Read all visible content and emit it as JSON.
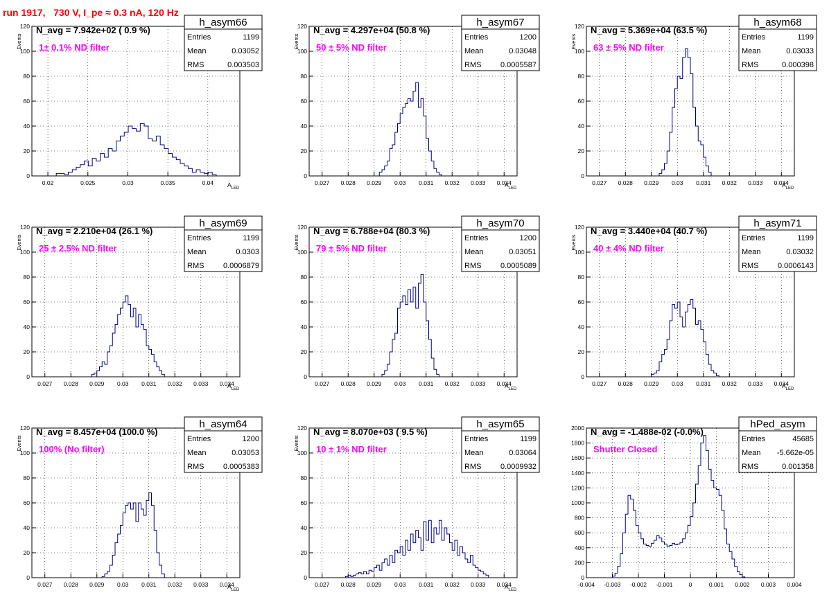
{
  "page": {
    "title": "run 1917,   730 V, I_pe ≈ 0.3 nA, 120 Hz",
    "colors": {
      "title": "#ff0000",
      "annotation": "#ff00ff",
      "histogram": "#000080",
      "grid": "#000000"
    }
  },
  "chart_data": [
    {
      "type": "histogram",
      "name": "h_asym66",
      "ylabel": "Events",
      "xlabel": "A_LED",
      "xlim": [
        0.018,
        0.044
      ],
      "ylim": [
        0,
        120
      ],
      "xticks": [
        0.02,
        0.025,
        0.03,
        0.035,
        0.04
      ],
      "xtick_labels": [
        "0.02",
        "0.025",
        "0.03",
        "0.035",
        "0.04"
      ],
      "yticks": [
        0,
        20,
        40,
        60,
        80,
        100,
        120
      ],
      "ytick_labels": [
        "0",
        "20",
        "40",
        "60",
        "80",
        "100",
        "120"
      ],
      "navg": "N_avg = 7.942e+02 ( 0.9 %)",
      "filter": "1± 0.1% ND filter",
      "stats": [
        [
          "Entries",
          "1199"
        ],
        [
          "Mean",
          "0.03052"
        ],
        [
          "RMS",
          "0.003503"
        ]
      ],
      "x": [
        0.0213,
        0.0218,
        0.0223,
        0.0228,
        0.0233,
        0.0238,
        0.0243,
        0.0248,
        0.0253,
        0.0258,
        0.0263,
        0.0268,
        0.0273,
        0.0278,
        0.0283,
        0.0288,
        0.0293,
        0.0298,
        0.0303,
        0.0308,
        0.0313,
        0.0318,
        0.0323,
        0.0328,
        0.0333,
        0.0338,
        0.0343,
        0.0348,
        0.0353,
        0.0358,
        0.0363,
        0.0368,
        0.0373,
        0.0378,
        0.0383,
        0.0388,
        0.0393,
        0.0398,
        0.0403,
        0.0408
      ],
      "values": [
        2,
        2,
        1,
        3,
        5,
        7,
        9,
        12,
        8,
        14,
        12,
        18,
        15,
        22,
        20,
        28,
        32,
        35,
        40,
        38,
        36,
        42,
        40,
        30,
        28,
        32,
        25,
        22,
        18,
        15,
        13,
        10,
        8,
        6,
        3,
        5,
        3,
        2,
        3,
        1
      ]
    },
    {
      "type": "histogram",
      "name": "h_asym67",
      "ylabel": "Events",
      "xlabel": "A_LED",
      "xlim": [
        0.0265,
        0.0345
      ],
      "ylim": [
        0,
        120
      ],
      "xticks": [
        0.027,
        0.028,
        0.029,
        0.03,
        0.031,
        0.032,
        0.033,
        0.034
      ],
      "xtick_labels": [
        "0.027",
        "0.028",
        "0.029",
        "0.03",
        "0.031",
        "0.032",
        "0.033",
        "0.034"
      ],
      "yticks": [
        0,
        20,
        40,
        60,
        80,
        100,
        120
      ],
      "ytick_labels": [
        "0",
        "20",
        "40",
        "60",
        "80",
        "100",
        "120"
      ],
      "navg": "N_avg = 4.297e+04 (50.8 %)",
      "filter": "50 ± 5% ND filter",
      "stats": [
        [
          "Entries",
          "1200"
        ],
        [
          "Mean",
          "0.03048"
        ],
        [
          "RMS",
          "0.0005587"
        ]
      ],
      "x": [
        0.02925,
        0.02935,
        0.02945,
        0.02955,
        0.02965,
        0.02975,
        0.02985,
        0.02995,
        0.03005,
        0.03015,
        0.03025,
        0.03035,
        0.03045,
        0.03055,
        0.03065,
        0.03075,
        0.03085,
        0.03095,
        0.03105,
        0.03115,
        0.03125,
        0.03135,
        0.03145,
        0.03155
      ],
      "values": [
        3,
        5,
        8,
        12,
        22,
        25,
        35,
        42,
        50,
        55,
        58,
        62,
        60,
        68,
        75,
        55,
        62,
        48,
        30,
        20,
        12,
        6,
        3,
        1
      ]
    },
    {
      "type": "histogram",
      "name": "h_asym68",
      "ylabel": "Events",
      "xlabel": "A_LED",
      "xlim": [
        0.0265,
        0.0345
      ],
      "ylim": [
        0,
        120
      ],
      "xticks": [
        0.027,
        0.028,
        0.029,
        0.03,
        0.031,
        0.032,
        0.033,
        0.034
      ],
      "xtick_labels": [
        "0.027",
        "0.028",
        "0.029",
        "0.03",
        "0.031",
        "0.032",
        "0.033",
        "0.034"
      ],
      "yticks": [
        0,
        20,
        40,
        60,
        80,
        100,
        120
      ],
      "ytick_labels": [
        "0",
        "20",
        "40",
        "60",
        "80",
        "100",
        "120"
      ],
      "navg": "N_avg = 5.369e+04 (63.5 %)",
      "filter": "63 ± 5% ND filter",
      "stats": [
        [
          "Entries",
          "1199"
        ],
        [
          "Mean",
          "0.03033"
        ],
        [
          "RMS",
          "0.000398"
        ]
      ],
      "x": [
        0.02935,
        0.02945,
        0.02955,
        0.02965,
        0.02975,
        0.02985,
        0.02995,
        0.03005,
        0.03015,
        0.03025,
        0.03035,
        0.03045,
        0.03055,
        0.03065,
        0.03075,
        0.03085,
        0.03095,
        0.03105,
        0.03115,
        0.03125
      ],
      "values": [
        2,
        5,
        10,
        20,
        35,
        55,
        70,
        80,
        78,
        95,
        102,
        95,
        82,
        55,
        40,
        28,
        25,
        15,
        8,
        3
      ]
    },
    {
      "type": "histogram",
      "name": "h_asym69",
      "ylabel": "Events",
      "xlabel": "A_LED",
      "xlim": [
        0.0265,
        0.0345
      ],
      "ylim": [
        0,
        120
      ],
      "xticks": [
        0.027,
        0.028,
        0.029,
        0.03,
        0.031,
        0.032,
        0.033,
        0.034
      ],
      "xtick_labels": [
        "0.027",
        "0.028",
        "0.029",
        "0.03",
        "0.031",
        "0.032",
        "0.033",
        "0.034"
      ],
      "yticks": [
        0,
        20,
        40,
        60,
        80,
        100,
        120
      ],
      "ytick_labels": [
        "0",
        "20",
        "40",
        "60",
        "80",
        "100",
        "120"
      ],
      "navg": "N_avg = 2.210e+04 (26.1 %)",
      "filter": "25 ± 2.5% ND filter",
      "stats": [
        [
          "Entries",
          "1199"
        ],
        [
          "Mean",
          "0.0303"
        ],
        [
          "RMS",
          "0.0006879"
        ]
      ],
      "x": [
        0.02885,
        0.02895,
        0.02905,
        0.02915,
        0.02925,
        0.02935,
        0.02945,
        0.02955,
        0.02965,
        0.02975,
        0.02985,
        0.02995,
        0.03005,
        0.03015,
        0.03025,
        0.03035,
        0.03045,
        0.03055,
        0.03065,
        0.03075,
        0.03085,
        0.03095,
        0.03105,
        0.03115,
        0.03125,
        0.03135,
        0.03145,
        0.03155
      ],
      "values": [
        2,
        3,
        5,
        8,
        12,
        10,
        20,
        25,
        35,
        42,
        50,
        55,
        60,
        65,
        58,
        48,
        55,
        40,
        50,
        42,
        38,
        25,
        22,
        18,
        12,
        8,
        5,
        2
      ]
    },
    {
      "type": "histogram",
      "name": "h_asym70",
      "ylabel": "Events",
      "xlabel": "A_LED",
      "xlim": [
        0.0265,
        0.0345
      ],
      "ylim": [
        0,
        120
      ],
      "xticks": [
        0.027,
        0.028,
        0.029,
        0.03,
        0.031,
        0.032,
        0.033,
        0.034
      ],
      "xtick_labels": [
        "0.027",
        "0.028",
        "0.029",
        "0.03",
        "0.031",
        "0.032",
        "0.033",
        "0.034"
      ],
      "yticks": [
        0,
        20,
        40,
        60,
        80,
        100,
        120
      ],
      "ytick_labels": [
        "0",
        "20",
        "40",
        "60",
        "80",
        "100",
        "120"
      ],
      "navg": "N_avg = 6.788e+04 (80.3 %)",
      "filter": "79 ± 5% ND filter",
      "stats": [
        [
          "Entries",
          "1200"
        ],
        [
          "Mean",
          "0.03051"
        ],
        [
          "RMS",
          "0.0005089"
        ]
      ],
      "x": [
        0.02935,
        0.02945,
        0.02955,
        0.02965,
        0.02975,
        0.02985,
        0.02995,
        0.03005,
        0.03015,
        0.03025,
        0.03035,
        0.03045,
        0.03055,
        0.03065,
        0.03075,
        0.03085,
        0.03095,
        0.03105,
        0.03115,
        0.03125,
        0.03135,
        0.03145
      ],
      "values": [
        2,
        5,
        10,
        20,
        30,
        35,
        55,
        60,
        65,
        58,
        70,
        60,
        72,
        55,
        75,
        82,
        60,
        45,
        30,
        15,
        6,
        2
      ]
    },
    {
      "type": "histogram",
      "name": "h_asym71",
      "ylabel": "Events",
      "xlabel": "A_LED",
      "xlim": [
        0.0265,
        0.0345
      ],
      "ylim": [
        0,
        120
      ],
      "xticks": [
        0.027,
        0.028,
        0.029,
        0.03,
        0.031,
        0.032,
        0.033,
        0.034
      ],
      "xtick_labels": [
        "0.027",
        "0.028",
        "0.029",
        "0.03",
        "0.031",
        "0.032",
        "0.033",
        "0.034"
      ],
      "yticks": [
        0,
        20,
        40,
        60,
        80,
        100,
        120
      ],
      "ytick_labels": [
        "0",
        "20",
        "40",
        "60",
        "80",
        "100",
        "120"
      ],
      "navg": "N_avg = 3.440e+04 (40.7 %)",
      "filter": "40 ± 4% ND filter",
      "stats": [
        [
          "Entries",
          "1199"
        ],
        [
          "Mean",
          "0.03032"
        ],
        [
          "RMS",
          "0.0006143"
        ]
      ],
      "x": [
        0.02905,
        0.02915,
        0.02925,
        0.02935,
        0.02945,
        0.02955,
        0.02965,
        0.02975,
        0.02985,
        0.02995,
        0.03005,
        0.03015,
        0.03025,
        0.03035,
        0.03045,
        0.03055,
        0.03065,
        0.03075,
        0.03085,
        0.03095,
        0.03105,
        0.03115,
        0.03125,
        0.03135,
        0.03145,
        0.03155
      ],
      "values": [
        2,
        3,
        5,
        12,
        18,
        22,
        30,
        45,
        58,
        55,
        60,
        48,
        40,
        52,
        58,
        62,
        55,
        42,
        45,
        38,
        28,
        18,
        10,
        5,
        3,
        1
      ]
    },
    {
      "type": "histogram",
      "name": "h_asym64",
      "ylabel": "Events",
      "xlabel": "A_LED",
      "xlim": [
        0.0265,
        0.0345
      ],
      "ylim": [
        0,
        120
      ],
      "xticks": [
        0.027,
        0.028,
        0.029,
        0.03,
        0.031,
        0.032,
        0.033,
        0.034
      ],
      "xtick_labels": [
        "0.027",
        "0.028",
        "0.029",
        "0.03",
        "0.031",
        "0.032",
        "0.033",
        "0.034"
      ],
      "yticks": [
        0,
        20,
        40,
        60,
        80,
        100,
        120
      ],
      "ytick_labels": [
        "0",
        "20",
        "40",
        "60",
        "80",
        "100",
        "120"
      ],
      "navg": "N_avg = 8.457e+04 (100.0 %)",
      "filter": "100% (No filter)",
      "stats": [
        [
          "Entries",
          "1200"
        ],
        [
          "Mean",
          "0.03053"
        ],
        [
          "RMS",
          "0.0005383"
        ]
      ],
      "x": [
        0.02925,
        0.02935,
        0.02945,
        0.02955,
        0.02965,
        0.02975,
        0.02985,
        0.02995,
        0.03005,
        0.03015,
        0.03025,
        0.03035,
        0.03045,
        0.03055,
        0.03065,
        0.03075,
        0.03085,
        0.03095,
        0.03105,
        0.03115,
        0.03125,
        0.03135,
        0.03145,
        0.03155
      ],
      "values": [
        1,
        3,
        5,
        10,
        18,
        28,
        35,
        42,
        52,
        58,
        60,
        55,
        60,
        45,
        60,
        55,
        50,
        62,
        68,
        58,
        38,
        20,
        10,
        3
      ]
    },
    {
      "type": "histogram",
      "name": "h_asym65",
      "ylabel": "Events",
      "xlabel": "A_LED",
      "xlim": [
        0.0265,
        0.0345
      ],
      "ylim": [
        0,
        120
      ],
      "xticks": [
        0.027,
        0.028,
        0.029,
        0.03,
        0.031,
        0.032,
        0.033,
        0.034
      ],
      "xtick_labels": [
        "0.027",
        "0.028",
        "0.029",
        "0.03",
        "0.031",
        "0.032",
        "0.033",
        "0.034"
      ],
      "yticks": [
        0,
        20,
        40,
        60,
        80,
        100,
        120
      ],
      "ytick_labels": [
        "0",
        "20",
        "40",
        "60",
        "80",
        "100",
        "120"
      ],
      "navg": "N_avg = 8.070e+03 ( 9.5 %)",
      "filter": "10 ± 1% ND filter",
      "stats": [
        [
          "Entries",
          "1199"
        ],
        [
          "Mean",
          "0.03064"
        ],
        [
          "RMS",
          "0.0009932"
        ]
      ],
      "x": [
        0.02795,
        0.02805,
        0.02815,
        0.02825,
        0.02835,
        0.02845,
        0.02855,
        0.02865,
        0.02875,
        0.02885,
        0.02895,
        0.02905,
        0.02915,
        0.02925,
        0.02935,
        0.02945,
        0.02955,
        0.02965,
        0.02975,
        0.02985,
        0.02995,
        0.03005,
        0.03015,
        0.03025,
        0.03035,
        0.03045,
        0.03055,
        0.03065,
        0.03075,
        0.03085,
        0.03095,
        0.03105,
        0.03115,
        0.03125,
        0.03135,
        0.03145,
        0.03155,
        0.03165,
        0.03175,
        0.03185,
        0.03195,
        0.03205,
        0.03215,
        0.03225,
        0.03235,
        0.03245,
        0.03255,
        0.03265,
        0.03275,
        0.03285,
        0.03295,
        0.03305,
        0.03315,
        0.03325,
        0.03335
      ],
      "values": [
        1,
        2,
        1,
        2,
        3,
        4,
        3,
        5,
        3,
        6,
        5,
        8,
        10,
        6,
        12,
        15,
        10,
        18,
        12,
        22,
        20,
        25,
        18,
        30,
        22,
        35,
        28,
        38,
        32,
        22,
        45,
        30,
        46,
        28,
        40,
        35,
        46,
        30,
        40,
        35,
        28,
        22,
        30,
        18,
        25,
        20,
        15,
        12,
        18,
        10,
        8,
        6,
        5,
        3,
        2
      ]
    },
    {
      "type": "histogram",
      "name": "hPed_asym",
      "ylabel": "",
      "xlabel": "",
      "xlim": [
        -0.004,
        0.004
      ],
      "ylim": [
        0,
        2000
      ],
      "xticks": [
        -0.004,
        -0.003,
        -0.002,
        -0.001,
        0,
        0.001,
        0.002,
        0.003,
        0.004
      ],
      "xtick_labels": [
        "-0.004",
        "-0.003",
        "-0.002",
        "-0.001",
        "0",
        "0.001",
        "0.002",
        "0.003",
        "0.004"
      ],
      "yticks": [
        0,
        200,
        400,
        600,
        800,
        1000,
        1200,
        1400,
        1600,
        1800,
        2000
      ],
      "ytick_labels": [
        "0",
        "200",
        "400",
        "600",
        "800",
        "1000",
        "1200",
        "1400",
        "1600",
        "1800",
        "2000"
      ],
      "navg": "N_avg = -1.488e-02 (-0.0%)",
      "filter": "Shutter Closed",
      "stats": [
        [
          "Entries",
          "45685"
        ],
        [
          "Mean",
          "-5.662e-05"
        ],
        [
          "RMS",
          "0.001358"
        ]
      ],
      "x": [
        -0.00295,
        -0.00285,
        -0.00275,
        -0.00265,
        -0.00255,
        -0.00245,
        -0.00235,
        -0.00225,
        -0.00215,
        -0.00205,
        -0.00195,
        -0.00185,
        -0.00175,
        -0.00165,
        -0.00155,
        -0.00145,
        -0.00135,
        -0.00125,
        -0.00115,
        -0.00105,
        -0.00095,
        -0.00085,
        -0.00075,
        -0.00065,
        -0.00055,
        -0.00045,
        -0.00035,
        -0.00025,
        -0.00015,
        -5e-05,
        5e-05,
        0.00015,
        0.00025,
        0.00035,
        0.00045,
        0.00055,
        0.00065,
        0.00075,
        0.00085,
        0.00095,
        0.00105,
        0.00115,
        0.00125,
        0.00135,
        0.00145,
        0.00155,
        0.00165,
        0.00175,
        0.00185,
        0.00195,
        0.00205
      ],
      "values": [
        20,
        60,
        150,
        320,
        600,
        850,
        1100,
        1050,
        900,
        700,
        600,
        520,
        450,
        430,
        420,
        460,
        500,
        560,
        530,
        480,
        450,
        420,
        430,
        460,
        440,
        450,
        470,
        520,
        600,
        700,
        820,
        1000,
        1250,
        1500,
        1800,
        1900,
        1700,
        1450,
        1300,
        1200,
        1180,
        1100,
        900,
        650,
        450,
        350,
        250,
        150,
        80,
        40,
        10
      ]
    }
  ]
}
